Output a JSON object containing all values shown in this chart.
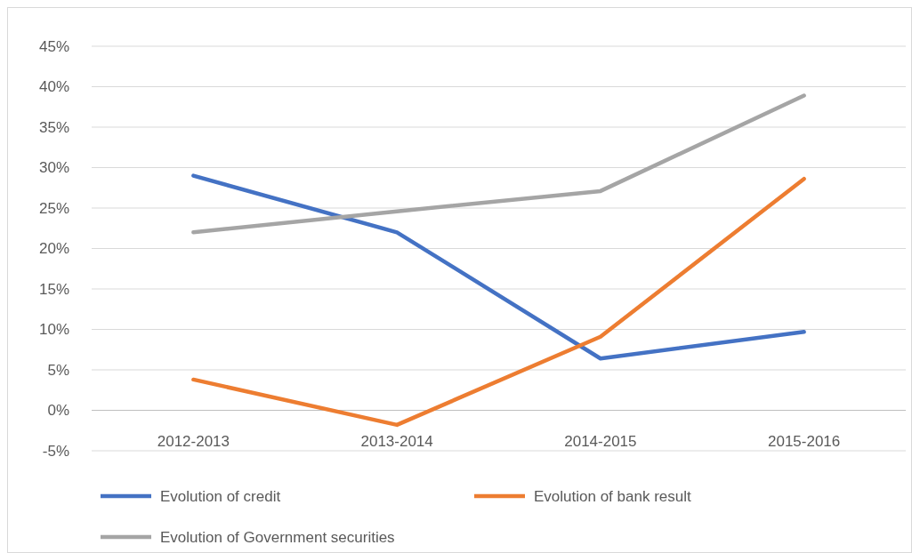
{
  "chart_data": {
    "type": "line",
    "categories": [
      "2012-2013",
      "2013-2014",
      "2014-2015",
      "2015-2016"
    ],
    "series": [
      {
        "name": "Evolution of credit",
        "color": "#4472c4",
        "values": [
          29.0,
          22.0,
          6.4,
          9.7
        ]
      },
      {
        "name": "Evolution of bank result",
        "color": "#ed7d31",
        "values": [
          3.8,
          -1.8,
          9.1,
          28.6
        ]
      },
      {
        "name": "Evolution of  Government securities",
        "color": "#a5a5a5",
        "values": [
          22.0,
          24.6,
          27.1,
          38.9
        ]
      }
    ],
    "ylim": [
      -5,
      45
    ],
    "yticks": [
      {
        "value": -5,
        "label": "-5%"
      },
      {
        "value": 0,
        "label": "0%"
      },
      {
        "value": 5,
        "label": "5%"
      },
      {
        "value": 10,
        "label": "10%"
      },
      {
        "value": 15,
        "label": "15%"
      },
      {
        "value": 20,
        "label": "20%"
      },
      {
        "value": 25,
        "label": "25%"
      },
      {
        "value": 30,
        "label": "30%"
      },
      {
        "value": 35,
        "label": "35%"
      },
      {
        "value": 40,
        "label": "40%"
      },
      {
        "value": 45,
        "label": "45%"
      }
    ],
    "grid": "y",
    "legend": "bottom",
    "marker": "none",
    "line_style": "solid"
  }
}
